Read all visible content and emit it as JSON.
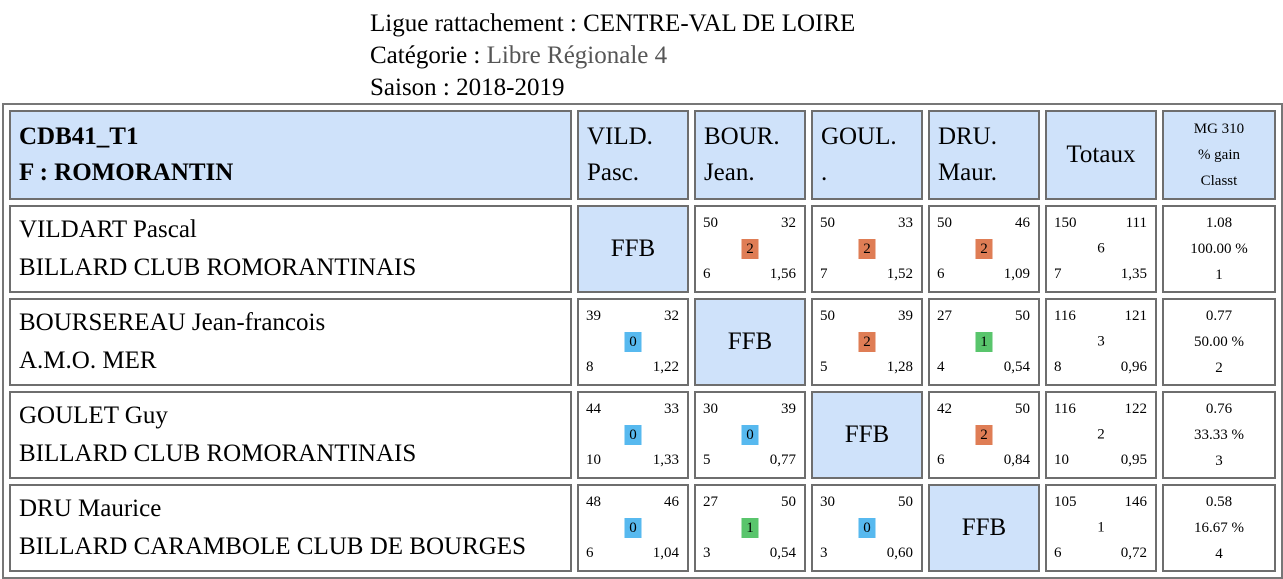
{
  "header": {
    "ligue_label": "Ligue rattachement : ",
    "ligue_value": "CENTRE-VAL DE LOIRE",
    "categorie_label": "Catégorie : ",
    "categorie_value": "Libre Régionale 4",
    "saison_label": "Saison : ",
    "saison_value": "2018-2019"
  },
  "colors": {
    "header_bg": "#cfe2fa",
    "win": "#df7d55",
    "draw": "#59c56c",
    "loss": "#57b9ef",
    "border": "#6e6e6e"
  },
  "table": {
    "team_line1": "CDB41_T1",
    "team_line2": "F : ROMORANTIN",
    "columns": [
      {
        "line1": "VILD.",
        "line2": "Pasc."
      },
      {
        "line1": "BOUR.",
        "line2": "Jean."
      },
      {
        "line1": "GOUL.",
        "line2": "."
      },
      {
        "line1": "DRU.",
        "line2": "Maur."
      }
    ],
    "totaux_label": "Totaux",
    "mg_label": "MG 310",
    "pct_label": "% gain",
    "classt_label": "Classt",
    "ffb_label": "FFB",
    "rows": [
      {
        "name": "VILDART Pascal",
        "club": "BILLARD CLUB ROMORANTINAIS",
        "cells": [
          null,
          {
            "pts": "50",
            "opp": "32",
            "result": "2",
            "reprises": "6",
            "moy": "1,56"
          },
          {
            "pts": "50",
            "opp": "33",
            "result": "2",
            "reprises": "7",
            "moy": "1,52"
          },
          {
            "pts": "50",
            "opp": "46",
            "result": "2",
            "reprises": "6",
            "moy": "1,09"
          }
        ],
        "totals": {
          "pts": "150",
          "opp": "111",
          "result": "6",
          "reprises": "7",
          "moy": "1,35"
        },
        "mg": "1.08",
        "pct": "100.00 %",
        "rank": "1"
      },
      {
        "name": "BOURSEREAU Jean-francois",
        "club": "A.M.O. MER",
        "cells": [
          {
            "pts": "39",
            "opp": "32",
            "result": "0",
            "reprises": "8",
            "moy": "1,22"
          },
          null,
          {
            "pts": "50",
            "opp": "39",
            "result": "2",
            "reprises": "5",
            "moy": "1,28"
          },
          {
            "pts": "27",
            "opp": "50",
            "result": "1",
            "reprises": "4",
            "moy": "0,54"
          }
        ],
        "totals": {
          "pts": "116",
          "opp": "121",
          "result": "3",
          "reprises": "8",
          "moy": "0,96"
        },
        "mg": "0.77",
        "pct": "50.00 %",
        "rank": "2"
      },
      {
        "name": "GOULET Guy",
        "club": "BILLARD CLUB ROMORANTINAIS",
        "cells": [
          {
            "pts": "44",
            "opp": "33",
            "result": "0",
            "reprises": "10",
            "moy": "1,33"
          },
          {
            "pts": "30",
            "opp": "39",
            "result": "0",
            "reprises": "5",
            "moy": "0,77"
          },
          null,
          {
            "pts": "42",
            "opp": "50",
            "result": "2",
            "reprises": "6",
            "moy": "0,84"
          }
        ],
        "totals": {
          "pts": "116",
          "opp": "122",
          "result": "2",
          "reprises": "10",
          "moy": "0,95"
        },
        "mg": "0.76",
        "pct": "33.33 %",
        "rank": "3"
      },
      {
        "name": "DRU Maurice",
        "club": "BILLARD CARAMBOLE CLUB DE BOURGES",
        "cells": [
          {
            "pts": "48",
            "opp": "46",
            "result": "0",
            "reprises": "6",
            "moy": "1,04"
          },
          {
            "pts": "27",
            "opp": "50",
            "result": "1",
            "reprises": "3",
            "moy": "0,54"
          },
          {
            "pts": "30",
            "opp": "50",
            "result": "0",
            "reprises": "3",
            "moy": "0,60"
          },
          null
        ],
        "totals": {
          "pts": "105",
          "opp": "146",
          "result": "1",
          "reprises": "6",
          "moy": "0,72"
        },
        "mg": "0.58",
        "pct": "16.67 %",
        "rank": "4"
      }
    ]
  }
}
